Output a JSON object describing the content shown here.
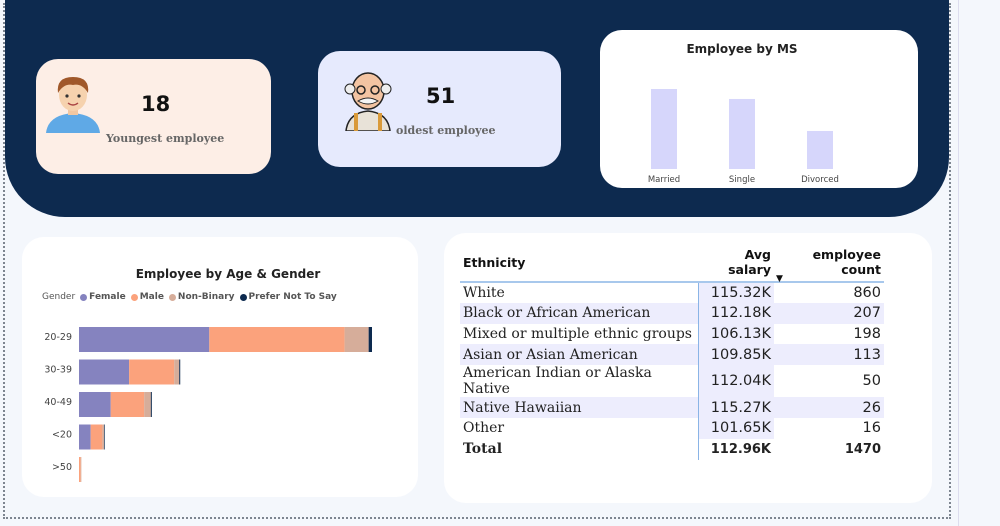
{
  "kpis": [
    {
      "value": "18",
      "label": "Youngest employee",
      "icon": "young-man-icon"
    },
    {
      "value": "51",
      "label": "oldest employee",
      "icon": "old-man-icon"
    }
  ],
  "colors": {
    "band": "#0d2a4f",
    "female": "#8583bf",
    "male": "#fba27c",
    "nonbinary": "#d6ad9a",
    "prefer_not": "#0d2a4f",
    "ms_bar": "#d6d6fb"
  },
  "chart_data": [
    {
      "type": "bar",
      "title": "Employee by MS",
      "categories": [
        "Married",
        "Single",
        "Divorced"
      ],
      "values": [
        673,
        589,
        320
      ]
    },
    {
      "type": "bar",
      "orientation": "horizontal",
      "stacked": true,
      "title": "Employee by Age & Gender",
      "legend_title": "Gender",
      "legend_position": "top-left",
      "categories": [
        "20-29",
        "30-39",
        "40-49",
        "<20",
        ">50"
      ],
      "series": [
        {
          "name": "Female",
          "values": [
            390,
            150,
            95,
            35,
            0
          ]
        },
        {
          "name": "Male",
          "values": [
            405,
            135,
            100,
            35,
            5
          ]
        },
        {
          "name": "Non-Binary",
          "values": [
            72,
            15,
            20,
            5,
            2
          ]
        },
        {
          "name": "Prefer Not To Say",
          "values": [
            10,
            3,
            3,
            2,
            0
          ]
        }
      ]
    }
  ],
  "table": {
    "headers": [
      "Ethnicity",
      "Avg salary",
      "employee count"
    ],
    "rows": [
      [
        "White",
        "115.32K",
        "860"
      ],
      [
        "Black or African American",
        "112.18K",
        "207"
      ],
      [
        "Mixed or multiple ethnic groups",
        "106.13K",
        "198"
      ],
      [
        "Asian or Asian American",
        "109.85K",
        "113"
      ],
      [
        "American Indian or Alaska Native",
        "112.04K",
        "50"
      ],
      [
        "Native Hawaiian",
        "115.27K",
        "26"
      ],
      [
        "Other",
        "101.65K",
        "16"
      ]
    ],
    "total": [
      "Total",
      "112.96K",
      "1470"
    ]
  }
}
